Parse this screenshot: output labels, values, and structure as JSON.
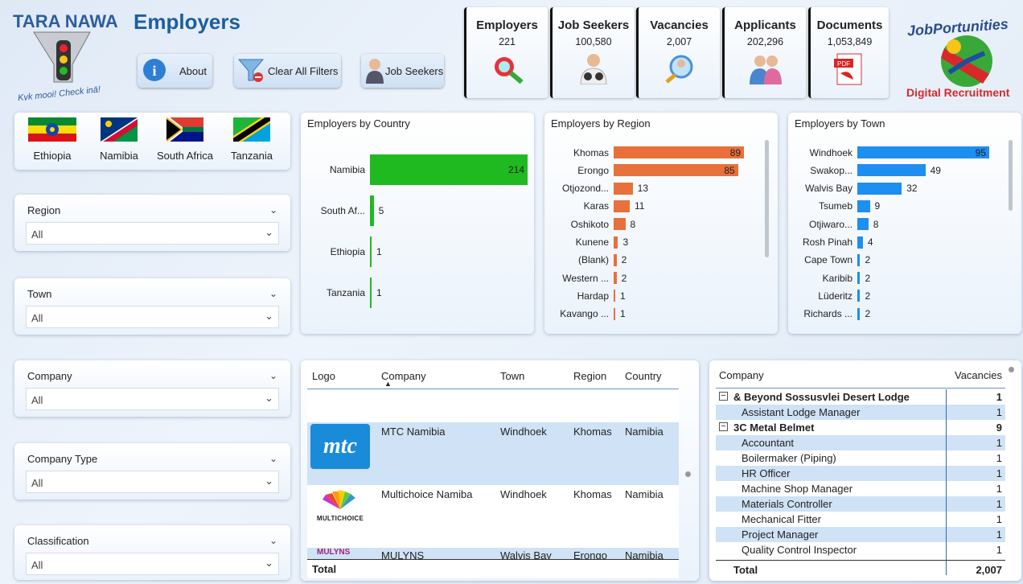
{
  "header": {
    "title": "Employers",
    "logo_left": {
      "name": "TARA NAWA",
      "tagline": "Kyk mooi! Check inā!"
    },
    "logo_right": {
      "name": "JobPortunities",
      "tagline": "Digital Recruitment"
    }
  },
  "buttons": {
    "about": "About",
    "clear": "Clear All Filters",
    "jobseekers": "Job Seekers"
  },
  "kpis": [
    {
      "label": "Employers",
      "value": "221"
    },
    {
      "label": "Job Seekers",
      "value": "100,580"
    },
    {
      "label": "Vacancies",
      "value": "2,007"
    },
    {
      "label": "Applicants",
      "value": "202,296"
    },
    {
      "label": "Documents",
      "value": "1,053,849"
    }
  ],
  "flags": [
    "Ethiopia",
    "Namibia",
    "South Africa",
    "Tanzania"
  ],
  "slicers": {
    "region": {
      "label": "Region",
      "value": "All"
    },
    "town": {
      "label": "Town",
      "value": "All"
    },
    "company": {
      "label": "Company",
      "value": "All"
    },
    "company_type": {
      "label": "Company Type",
      "value": "All"
    },
    "classification": {
      "label": "Classification",
      "value": "All"
    }
  },
  "chart_data": [
    {
      "type": "bar",
      "title": "Employers by Country",
      "categories": [
        "Namibia",
        "South Af...",
        "Ethiopia",
        "Tanzania"
      ],
      "values": [
        214,
        5,
        1,
        1
      ],
      "color": "#1fba1f"
    },
    {
      "type": "bar",
      "title": "Employers by Region",
      "categories": [
        "Khomas",
        "Erongo",
        "Otjozond...",
        "Karas",
        "Oshikoto",
        "Kunene",
        "(Blank)",
        "Western ...",
        "Hardap",
        "Kavango ..."
      ],
      "values": [
        89,
        85,
        13,
        11,
        8,
        3,
        2,
        2,
        1,
        1
      ],
      "color": "#e8703a"
    },
    {
      "type": "bar",
      "title": "Employers by Town",
      "categories": [
        "Windhoek",
        "Swakop...",
        "Walvis Bay",
        "Tsumeb",
        "Otjiwaro...",
        "Rosh Pinah",
        "Cape Town",
        "Karibib",
        "Lüderitz",
        "Richards ..."
      ],
      "values": [
        95,
        49,
        32,
        9,
        8,
        4,
        2,
        2,
        2,
        2
      ],
      "color": "#1e8ef0"
    }
  ],
  "employers_table": {
    "columns": [
      "Logo",
      "Company",
      "Town",
      "Region",
      "Country"
    ],
    "rows": [
      {
        "logo": "mtc",
        "company": "MTC Namibia",
        "town": "Windhoek",
        "region": "Khomas",
        "country": "Namibia"
      },
      {
        "logo": "MULTICHOICE",
        "company": "Multichoice Namiba",
        "town": "Windhoek",
        "region": "Khomas",
        "country": "Namibia"
      },
      {
        "logo": "MULYNS",
        "company": "MULYNS",
        "town": "Walvis Bay",
        "region": "Erongo",
        "country": "Namibia"
      }
    ],
    "total": "Total"
  },
  "vacancies_table": {
    "columns": [
      "Company",
      "Vacancies"
    ],
    "rows": [
      {
        "label": "& Beyond Sossusvlei Desert Lodge",
        "value": "1",
        "group": true
      },
      {
        "label": "Assistant Lodge Manager",
        "value": "1",
        "group": false
      },
      {
        "label": "3C Metal Belmet",
        "value": "9",
        "group": true
      },
      {
        "label": "Accountant",
        "value": "1",
        "group": false
      },
      {
        "label": "Boilermaker (Piping)",
        "value": "1",
        "group": false
      },
      {
        "label": "HR Officer",
        "value": "1",
        "group": false
      },
      {
        "label": "Machine Shop Manager",
        "value": "1",
        "group": false
      },
      {
        "label": "Materials Controller",
        "value": "1",
        "group": false
      },
      {
        "label": "Mechanical Fitter",
        "value": "1",
        "group": false
      },
      {
        "label": "Project Manager",
        "value": "1",
        "group": false
      },
      {
        "label": "Quality Control Inspector",
        "value": "1",
        "group": false
      }
    ],
    "total_label": "Total",
    "total_value": "2,007"
  }
}
